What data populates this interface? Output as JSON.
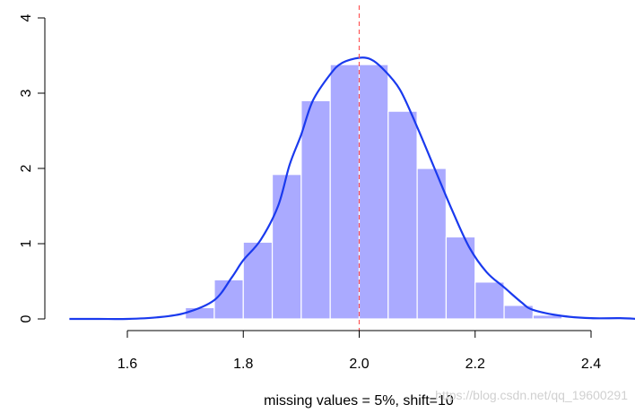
{
  "chart_data": {
    "type": "bar",
    "title": "",
    "xlabel": "missing values = 5%, shift=10",
    "ylabel": "",
    "xlim": [
      1.5,
      2.48
    ],
    "ylim": [
      0,
      4
    ],
    "bin_width": 0.05,
    "histogram": {
      "bin_left_edges": [
        1.7,
        1.75,
        1.8,
        1.85,
        1.9,
        1.95,
        2.0,
        2.05,
        2.1,
        2.15,
        2.2,
        2.25,
        2.3
      ],
      "values": [
        0.15,
        0.52,
        1.02,
        1.92,
        2.9,
        3.38,
        3.38,
        2.76,
        2.0,
        1.09,
        0.49,
        0.18,
        0.05
      ],
      "color": "#aaaaff",
      "border_color": "#ffffff"
    },
    "density_line": {
      "x": [
        1.5,
        1.55,
        1.6,
        1.65,
        1.7,
        1.75,
        1.78,
        1.8,
        1.83,
        1.86,
        1.88,
        1.9,
        1.92,
        1.95,
        1.97,
        2.0,
        2.02,
        2.04,
        2.07,
        2.1,
        2.13,
        2.16,
        2.19,
        2.22,
        2.25,
        2.28,
        2.3,
        2.35,
        2.4,
        2.45,
        2.48
      ],
      "y": [
        0.0,
        0.0,
        0.0,
        0.02,
        0.08,
        0.25,
        0.55,
        0.78,
        1.05,
        1.5,
        2.05,
        2.45,
        2.9,
        3.25,
        3.4,
        3.47,
        3.45,
        3.33,
        3.05,
        2.55,
        2.0,
        1.45,
        0.95,
        0.62,
        0.42,
        0.22,
        0.12,
        0.04,
        0.01,
        0.01,
        0.0
      ],
      "color": "#1a3aee"
    },
    "reference_line": {
      "x": 2.0,
      "color": "#ff5555",
      "style": "dashed"
    },
    "x_ticks": [
      {
        "value": 1.6,
        "label": "1.6"
      },
      {
        "value": 1.8,
        "label": "1.8"
      },
      {
        "value": 2.0,
        "label": "2.0"
      },
      {
        "value": 2.2,
        "label": "2.2"
      },
      {
        "value": 2.4,
        "label": "2.4"
      }
    ],
    "y_ticks": [
      {
        "value": 0,
        "label": "0"
      },
      {
        "value": 1,
        "label": "1"
      },
      {
        "value": 2,
        "label": "2"
      },
      {
        "value": 3,
        "label": "3"
      },
      {
        "value": 4,
        "label": "4"
      }
    ],
    "grid": false,
    "watermark": "https://blog.csdn.net/qq_19600291"
  }
}
